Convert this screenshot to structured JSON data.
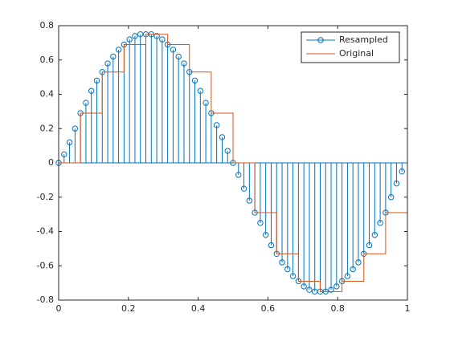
{
  "chart_data": {
    "type": "stem",
    "xlim": [
      0,
      1
    ],
    "ylim": [
      -0.8,
      0.8
    ],
    "xticks": [
      0,
      0.2,
      0.4,
      0.6,
      0.8,
      1
    ],
    "yticks": [
      -0.8,
      -0.6,
      -0.4,
      -0.2,
      0,
      0.2,
      0.4,
      0.6,
      0.8
    ],
    "legend": "northeast",
    "series": [
      {
        "name": "Resampled",
        "type": "stem",
        "color": "#0072BD",
        "x": [
          0,
          0.015625,
          0.03125,
          0.046875,
          0.0625,
          0.078125,
          0.09375,
          0.109375,
          0.125,
          0.140625,
          0.15625,
          0.171875,
          0.1875,
          0.203125,
          0.21875,
          0.234375,
          0.25,
          0.265625,
          0.28125,
          0.296875,
          0.3125,
          0.328125,
          0.34375,
          0.359375,
          0.375,
          0.390625,
          0.40625,
          0.421875,
          0.4375,
          0.453125,
          0.46875,
          0.484375,
          0.5,
          0.515625,
          0.53125,
          0.546875,
          0.5625,
          0.578125,
          0.59375,
          0.609375,
          0.625,
          0.640625,
          0.65625,
          0.671875,
          0.6875,
          0.703125,
          0.71875,
          0.734375,
          0.75,
          0.765625,
          0.78125,
          0.796875,
          0.8125,
          0.828125,
          0.84375,
          0.859375,
          0.875,
          0.890625,
          0.90625,
          0.921875,
          0.9375,
          0.953125,
          0.96875,
          0.984375
        ],
        "values": [
          0,
          0.05,
          0.12,
          0.2,
          0.29,
          0.35,
          0.42,
          0.48,
          0.53,
          0.58,
          0.62,
          0.66,
          0.69,
          0.72,
          0.74,
          0.75,
          0.75,
          0.75,
          0.74,
          0.72,
          0.69,
          0.66,
          0.62,
          0.58,
          0.53,
          0.48,
          0.42,
          0.35,
          0.29,
          0.22,
          0.15,
          0.07,
          0,
          -0.07,
          -0.15,
          -0.22,
          -0.29,
          -0.35,
          -0.42,
          -0.48,
          -0.53,
          -0.58,
          -0.62,
          -0.66,
          -0.69,
          -0.72,
          -0.74,
          -0.75,
          -0.75,
          -0.75,
          -0.74,
          -0.72,
          -0.69,
          -0.66,
          -0.62,
          -0.58,
          -0.53,
          -0.48,
          -0.42,
          -0.35,
          -0.29,
          -0.2,
          -0.12,
          -0.05
        ]
      },
      {
        "name": "Original",
        "type": "stairs",
        "color": "#D95319",
        "x": [
          0,
          0.0625,
          0.125,
          0.1875,
          0.25,
          0.3125,
          0.375,
          0.4375,
          0.5,
          0.5625,
          0.625,
          0.6875,
          0.75,
          0.8125,
          0.875,
          0.9375
        ],
        "values": [
          0,
          0.29,
          0.53,
          0.69,
          0.75,
          0.69,
          0.53,
          0.29,
          0,
          -0.29,
          -0.53,
          -0.69,
          -0.75,
          -0.69,
          -0.53,
          -0.29
        ]
      }
    ]
  }
}
